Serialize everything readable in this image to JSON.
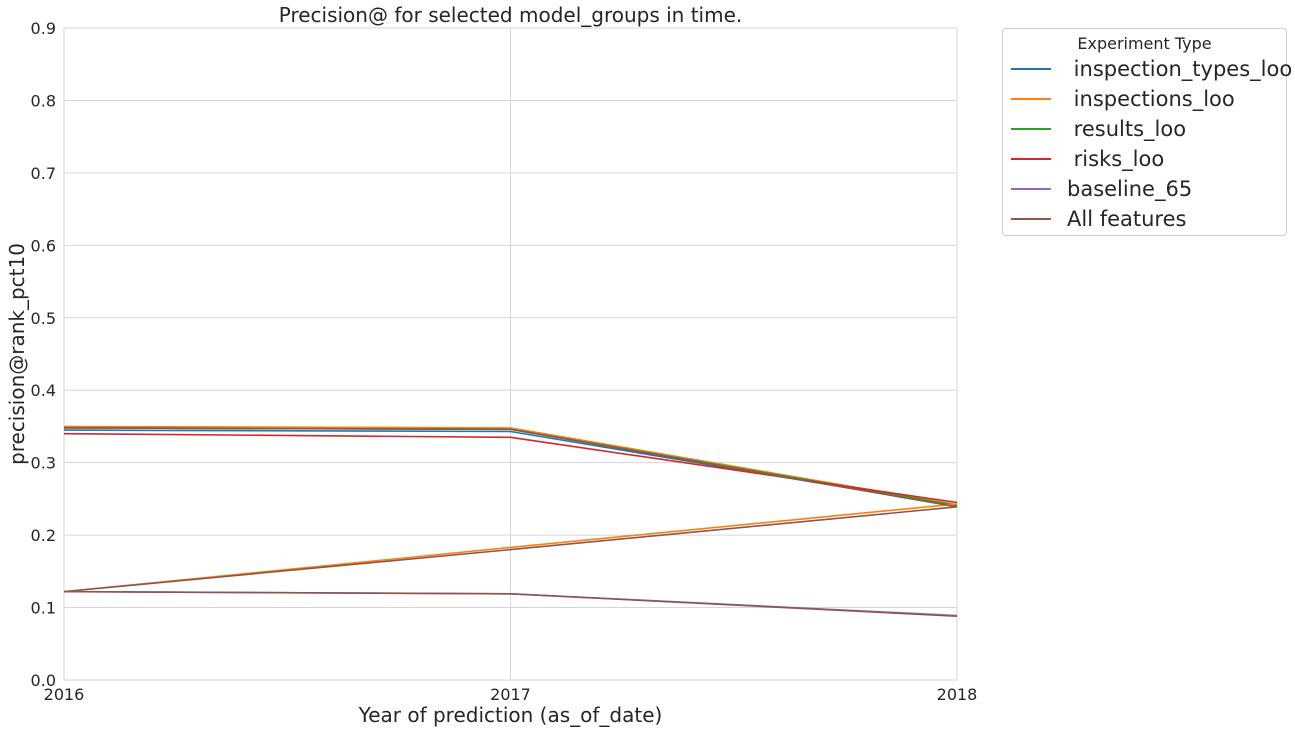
{
  "chart_data": {
    "type": "line",
    "title": "Precision@ for selected model_groups in time.",
    "xlabel": "Year of prediction (as_of_date)",
    "ylabel": "precision@rank_pct10",
    "x": [
      2016,
      2017,
      2018
    ],
    "x_tick_labels": [
      "2016",
      "2017",
      "2018"
    ],
    "xlim": [
      2016,
      2018
    ],
    "ylim": [
      0,
      0.9
    ],
    "y_ticks": [
      0.0,
      0.1,
      0.2,
      0.3,
      0.4,
      0.5,
      0.6,
      0.7,
      0.8,
      0.9
    ],
    "y_tick_labels": [
      "0.0",
      "0.1",
      "0.2",
      "0.3",
      "0.4",
      "0.5",
      "0.6",
      "0.7",
      "0.8",
      "0.9"
    ],
    "grid": true,
    "legend_title": "Experiment Type",
    "legend_position": "outside-top-right",
    "series": [
      {
        "name": " inspection_types_loo",
        "color": "#1f77b4",
        "values": [
          0.345,
          0.343,
          0.24
        ]
      },
      {
        "name": " inspections_loo",
        "color": "#ff7f0e",
        "values": [
          0.35,
          0.348,
          0.242
        ]
      },
      {
        "name": " results_loo",
        "color": "#2ca02c",
        "values": [
          0.348,
          0.346,
          0.241
        ]
      },
      {
        "name": " risks_loo",
        "color": "#d62728",
        "values": [
          0.34,
          0.335,
          0.245
        ]
      },
      {
        "name": "baseline_65",
        "color": "#9467bd",
        "values": [
          0.122,
          0.119,
          0.089
        ]
      },
      {
        "name": "All features",
        "color": "#8c564b",
        "values": [
          0.122,
          0.119,
          0.088
        ]
      },
      {
        "name": "",
        "color": "#ff7f0e",
        "values": [
          0.122,
          0.183,
          0.243
        ]
      },
      {
        "name": "",
        "color": "#8c564b",
        "values": [
          0.122,
          0.18,
          0.239
        ]
      },
      {
        "name": "",
        "color": "#8c564b",
        "values": [
          0.348,
          0.346,
          0.239
        ]
      }
    ]
  }
}
